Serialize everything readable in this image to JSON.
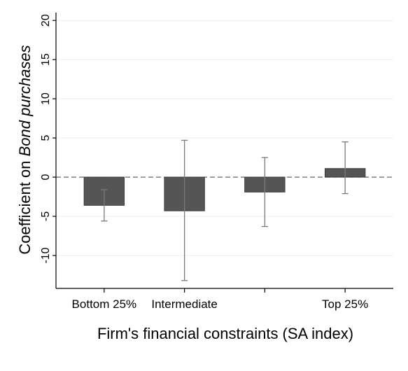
{
  "chart_data": {
    "type": "bar",
    "title": "",
    "xlabel": "Firm's financial constraints (SA index)",
    "ylabel_prefix": "Coefficient on ",
    "ylabel_emph": "Bond purchases",
    "categories": [
      "Bottom 25%",
      "Intermediate",
      "Top 25%"
    ],
    "category_positions": [
      1,
      2,
      3,
      4
    ],
    "bars": [
      {
        "x": 1,
        "value": -3.6,
        "ci_low": -5.6,
        "ci_high": -1.6
      },
      {
        "x": 2,
        "value": -4.3,
        "ci_low": -13.2,
        "ci_high": 4.7
      },
      {
        "x": 3,
        "value": -1.9,
        "ci_low": -6.3,
        "ci_high": 2.5
      },
      {
        "x": 4,
        "value": 1.1,
        "ci_low": -2.1,
        "ci_high": 4.5
      }
    ],
    "category_labels": [
      {
        "x": 1,
        "label": "Bottom 25%"
      },
      {
        "x": 2,
        "label": "Intermediate"
      },
      {
        "x": 4,
        "label": "Top 25%"
      }
    ],
    "yticks": [
      -10,
      -5,
      0,
      5,
      10,
      15,
      20
    ],
    "ylim": [
      -14.2,
      21
    ],
    "xlim": [
      0.4,
      4.6
    ],
    "reference_line": 0,
    "grid": true,
    "colors": {
      "bar": "#555555",
      "bar_edge": "#3a3a3a",
      "error_bar": "#7a7a7a",
      "grid": "#eeeeee",
      "axis": "#000000",
      "reference_line": "#555555"
    }
  }
}
